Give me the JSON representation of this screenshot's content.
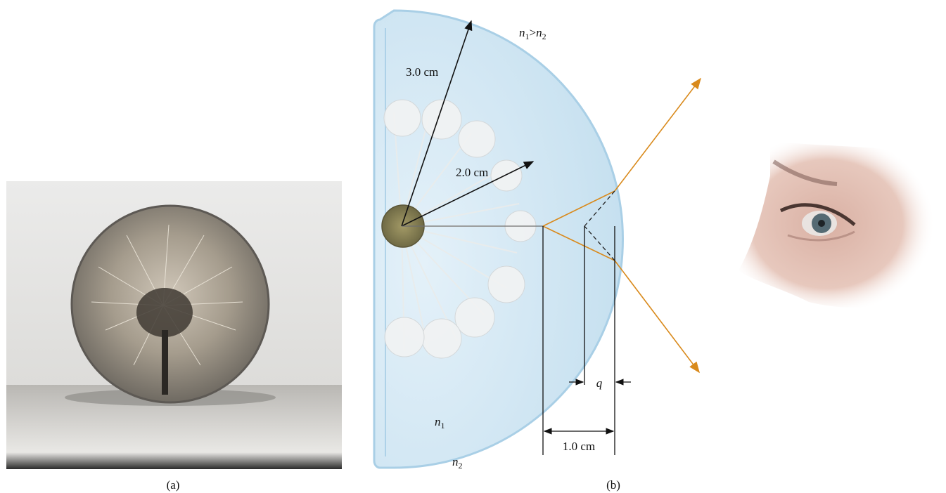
{
  "panel_a": {
    "caption": "(a)"
  },
  "panel_b": {
    "caption": "(b)",
    "index_relation": {
      "n": "n",
      "sub1": "1",
      "gt": ">",
      "sub2": "2"
    },
    "inner_index": {
      "n": "n",
      "sub": "1"
    },
    "outer_index": {
      "n": "n",
      "sub": "2"
    },
    "outer_radius_label": "3.0 cm",
    "inner_radius_label": "2.0 cm",
    "object_distance_label": "1.0 cm",
    "image_distance_label": "q",
    "colors": {
      "glass_fill": "#cfe6f3",
      "glass_edge": "#a9cfe6",
      "ray": "#d98a1c",
      "dimension_line": "#111111"
    }
  }
}
